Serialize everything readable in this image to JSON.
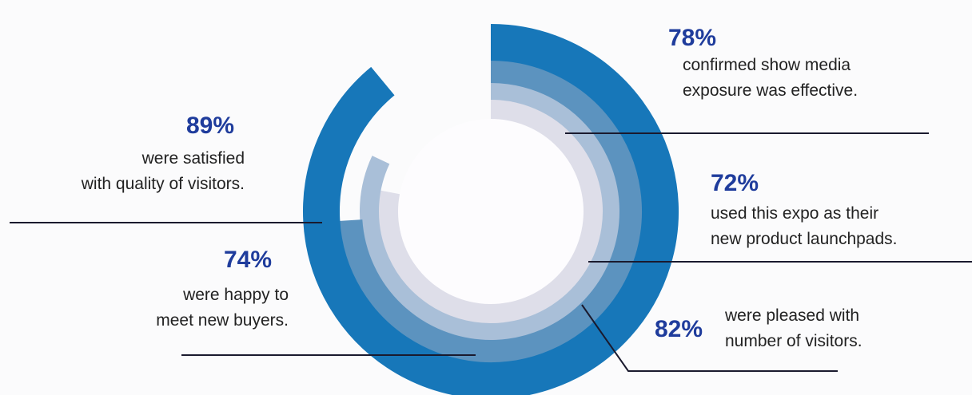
{
  "colors": {
    "ring_outer": "#1777b9",
    "ring_second": "#5c93bf",
    "ring_third": "#a9bfd8",
    "ring_inner": "#dedee9",
    "pct_text": "#1f3c9c",
    "leader_line": "#1a1a2e"
  },
  "chart_data": {
    "type": "radial-bar",
    "title": "",
    "series": [
      {
        "name": "",
        "value": 89,
        "unit": "%",
        "ring": "outer",
        "label_lines": [
          "were satisfied",
          "with quality of visitors."
        ]
      },
      {
        "name": "",
        "value": 74,
        "unit": "%",
        "ring": "second",
        "label_lines": [
          "were happy to",
          "meet new buyers."
        ]
      },
      {
        "name": "",
        "value": 82,
        "unit": "%",
        "ring": "third",
        "label_lines": [
          "were pleased with",
          "number of visitors."
        ]
      },
      {
        "name": "",
        "value": 78,
        "unit": "%",
        "ring": "inner",
        "label_lines": [
          "confirmed show media",
          "exposure was effective."
        ]
      },
      {
        "name": "",
        "value": 72,
        "unit": "%",
        "ring": "none",
        "label_lines": [
          "used this expo as their",
          "new product launchpads."
        ]
      }
    ]
  },
  "labels": {
    "satisfied": {
      "pct": "89%",
      "line1": "were satisfied",
      "line2": "with quality of visitors."
    },
    "happy": {
      "pct": "74%",
      "line1": "were happy to",
      "line2": "meet new buyers."
    },
    "media": {
      "pct": "78%",
      "line1": "confirmed show media",
      "line2": "exposure was effective."
    },
    "launch": {
      "pct": "72%",
      "line1": "used this expo as their",
      "line2": "new product launchpads."
    },
    "pleased": {
      "pct": "82%",
      "line1": "were pleased with",
      "line2": "number of visitors."
    }
  }
}
